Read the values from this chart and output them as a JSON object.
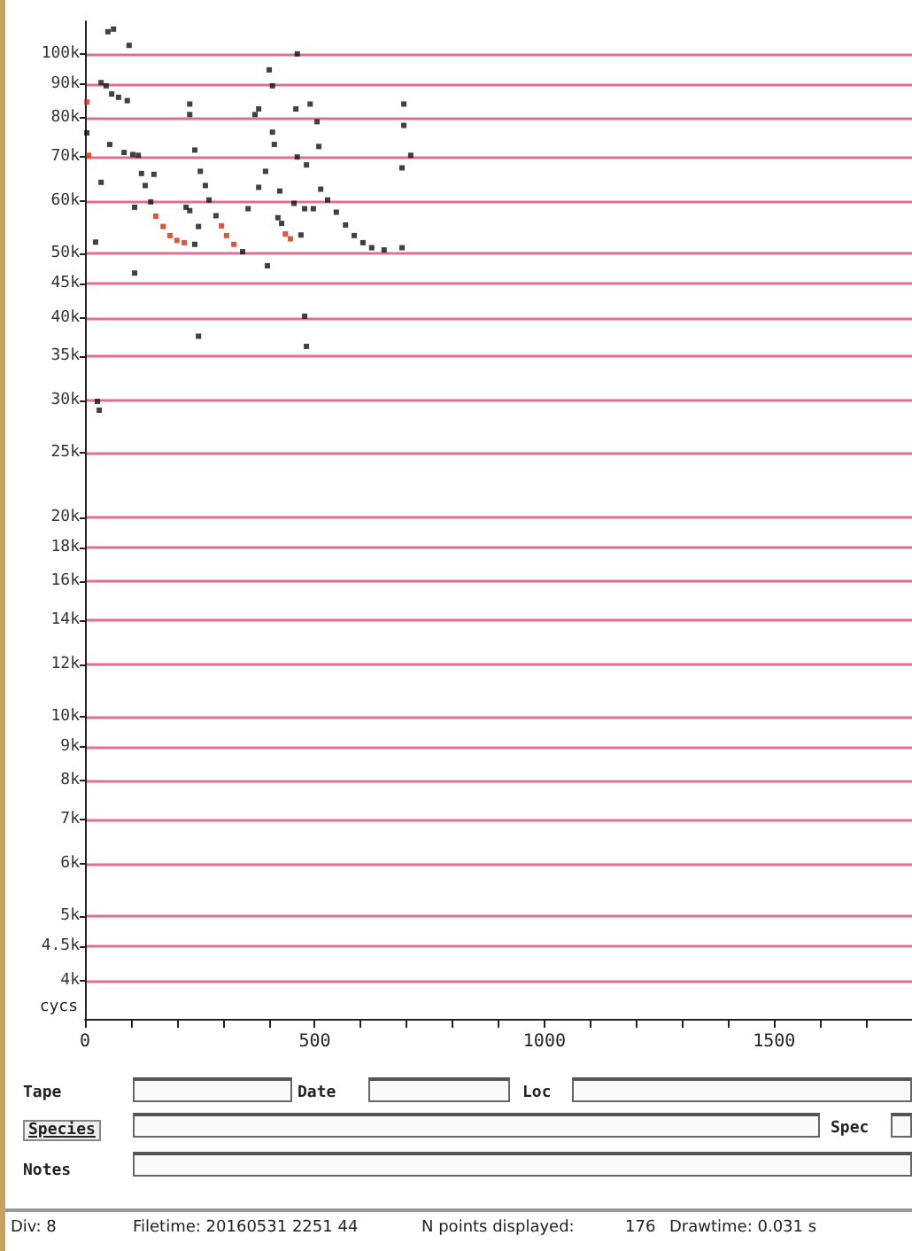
{
  "chart_data": {
    "type": "scatter",
    "xlabel": "cycs",
    "log": "y",
    "grid": "y",
    "marker": "square",
    "xlim": [
      0,
      1800
    ],
    "xticks": [
      0,
      {
        "value": 100,
        "label": null
      },
      {
        "value": 200,
        "label": null
      },
      {
        "value": 300,
        "label": null
      },
      {
        "value": 400,
        "label": null
      },
      500,
      {
        "value": 600,
        "label": null
      },
      {
        "value": 700,
        "label": null
      },
      {
        "value": 800,
        "label": null
      },
      {
        "value": 900,
        "label": null
      },
      1000,
      {
        "value": 1100,
        "label": null
      },
      {
        "value": 1200,
        "label": null
      },
      {
        "value": 1300,
        "label": null
      },
      {
        "value": 1400,
        "label": null
      },
      1500,
      {
        "value": 1600,
        "label": null
      },
      {
        "value": 1700,
        "label": null
      }
    ],
    "ylim": [
      3500,
      112000
    ],
    "yticks": [
      {
        "value": 4000,
        "label": "4k"
      },
      {
        "value": 4500,
        "label": "4.5k"
      },
      {
        "value": 5000,
        "label": "5k"
      },
      {
        "value": 6000,
        "label": "6k"
      },
      {
        "value": 7000,
        "label": "7k"
      },
      {
        "value": 8000,
        "label": "8k"
      },
      {
        "value": 9000,
        "label": "9k"
      },
      {
        "value": 10000,
        "label": "10k"
      },
      {
        "value": 12000,
        "label": "12k"
      },
      {
        "value": 14000,
        "label": "14k"
      },
      {
        "value": 16000,
        "label": "16k"
      },
      {
        "value": 18000,
        "label": "18k"
      },
      {
        "value": 20000,
        "label": "20k"
      },
      {
        "value": 25000,
        "label": "25k"
      },
      {
        "value": 30000,
        "label": "30k"
      },
      {
        "value": 35000,
        "label": "35k"
      },
      {
        "value": 40000,
        "label": "40k"
      },
      {
        "value": 45000,
        "label": "45k"
      },
      {
        "value": 50000,
        "label": "50k"
      },
      {
        "value": 60000,
        "label": "60k"
      },
      {
        "value": 70000,
        "label": "70k"
      },
      {
        "value": 80000,
        "label": "80k"
      },
      {
        "value": 90000,
        "label": "90k"
      },
      {
        "value": 100000,
        "label": "100k"
      }
    ],
    "series": [
      {
        "color": "#111111",
        "x": [
          50,
          62,
          96,
          4,
          35,
          46,
          58,
          73,
          92,
          54,
          35,
          23,
          85,
          104,
          116,
          123,
          131,
          143,
          150,
          108,
          108,
          228,
          228,
          239,
          220,
          228,
          247,
          239,
          251,
          262,
          270,
          285,
          343,
          247,
          355,
          378,
          393,
          397,
          370,
          378,
          408,
          412,
          401,
          408,
          462,
          420,
          428,
          470,
          424,
          455,
          478,
          497,
          459,
          490,
          505,
          509,
          462,
          482,
          478,
          482,
          513,
          528,
          547,
          567,
          586,
          605,
          624,
          651,
          690,
          694,
          694,
          709,
          690,
          27,
          31
        ],
        "values": [
          108000,
          109000,
          103000,
          76000,
          90500,
          89500,
          87000,
          86000,
          85000,
          73000,
          64000,
          52000,
          71000,
          70500,
          70300,
          66000,
          63300,
          59800,
          65800,
          58700,
          46700,
          84000,
          81000,
          71600,
          58700,
          58000,
          54900,
          51600,
          66500,
          63300,
          60200,
          57000,
          50300,
          37500,
          58400,
          62900,
          66500,
          47900,
          81000,
          82600,
          76200,
          73000,
          94600,
          89500,
          100000,
          56600,
          55500,
          53300,
          62100,
          59500,
          58400,
          58400,
          82600,
          84000,
          79000,
          72500,
          69900,
          68000,
          40200,
          36200,
          62500,
          60200,
          57700,
          55200,
          53200,
          51900,
          51000,
          50600,
          51000,
          84000,
          78000,
          70300,
          67300,
          29900,
          29000
        ]
      },
      {
        "color": "#d03010",
        "x": [
          4,
          8,
          154,
          170,
          185,
          200,
          216,
          297,
          308,
          324,
          436,
          447
        ],
        "values": [
          84600,
          70300,
          56900,
          54900,
          53200,
          52300,
          51900,
          55000,
          53200,
          51600,
          53500,
          52600
        ]
      }
    ],
    "annotations": [
      "Tape",
      "Date",
      "Loc",
      "Species",
      "Spec",
      "Notes",
      "Div: 8",
      "Filetime: 20160531 2251 44",
      "N points displayed:",
      "176",
      "Drawtime: 0.031 s"
    ]
  }
}
